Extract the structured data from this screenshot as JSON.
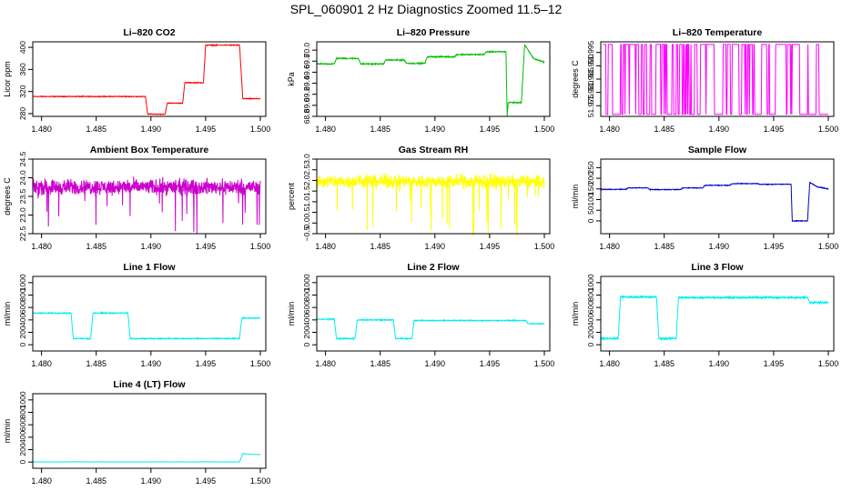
{
  "title": "SPL_060901  2 Hz Diagnostics Zoomed 11.5–12",
  "chart_data": [
    {
      "type": "line",
      "title": "Li–820 CO2",
      "ylabel": "Licor ppm",
      "color": "#ff0000",
      "xlim": [
        1.4792,
        1.5005
      ],
      "xticks": [
        "1.480",
        "1.485",
        "1.490",
        "1.495",
        "1.500"
      ],
      "xtick_values": [
        1.48,
        1.485,
        1.49,
        1.495,
        1.5
      ],
      "ylim": [
        275,
        410
      ],
      "yticks": [
        "280",
        "320",
        "360",
        "400"
      ],
      "ytick_values": [
        280,
        320,
        360,
        400
      ],
      "noise": 1.0,
      "segments": [
        [
          1.4792,
          311
        ],
        [
          1.4895,
          311
        ],
        [
          1.4897,
          279
        ],
        [
          1.4913,
          279
        ],
        [
          1.4915,
          299
        ],
        [
          1.4929,
          299
        ],
        [
          1.4931,
          336
        ],
        [
          1.4948,
          336
        ],
        [
          1.495,
          404
        ],
        [
          1.4981,
          404
        ],
        [
          1.4984,
          307
        ],
        [
          1.5,
          307
        ]
      ]
    },
    {
      "type": "line",
      "title": "Li–820 Pressure",
      "ylabel": "kPa",
      "color": "#00bb00",
      "xlim": [
        1.4792,
        1.5005
      ],
      "xticks": [
        "1.480",
        "1.485",
        "1.490",
        "1.495",
        "1.500"
      ],
      "xtick_values": [
        1.48,
        1.485,
        1.49,
        1.495,
        1.5
      ],
      "ylim": [
        68.8,
        70.15
      ],
      "yticks": [
        "68.8",
        "69.0",
        "69.2",
        "69.4",
        "69.6",
        "69.8",
        "70.0"
      ],
      "ytick_values": [
        68.8,
        69.0,
        69.2,
        69.4,
        69.6,
        69.8,
        70.0
      ],
      "noise": 0.015,
      "segments": [
        [
          1.4792,
          69.75
        ],
        [
          1.4808,
          69.75
        ],
        [
          1.481,
          69.85
        ],
        [
          1.483,
          69.85
        ],
        [
          1.4832,
          69.75
        ],
        [
          1.4853,
          69.75
        ],
        [
          1.4855,
          69.82
        ],
        [
          1.4872,
          69.82
        ],
        [
          1.4874,
          69.76
        ],
        [
          1.4891,
          69.76
        ],
        [
          1.4893,
          69.88
        ],
        [
          1.4918,
          69.88
        ],
        [
          1.492,
          69.92
        ],
        [
          1.4945,
          69.92
        ],
        [
          1.4947,
          69.97
        ],
        [
          1.4965,
          69.97
        ],
        [
          1.4966,
          68.8
        ],
        [
          1.4967,
          69.05
        ],
        [
          1.4979,
          69.05
        ],
        [
          1.4982,
          70.1
        ],
        [
          1.499,
          69.85
        ],
        [
          1.5,
          69.78
        ]
      ]
    },
    {
      "type": "line",
      "title": "Li–820 Temperature",
      "ylabel": "degrees C",
      "color": "#ff00ff",
      "xlim": [
        1.4792,
        1.5005
      ],
      "xticks": [
        "1.480",
        "1.485",
        "1.490",
        "1.495",
        "1.500"
      ],
      "xtick_values": [
        1.48,
        1.485,
        1.49,
        1.495,
        1.5
      ],
      "ylim": [
        51.971,
        51.999
      ],
      "yticks": [
        "51.975",
        "51.980",
        "51.985",
        "51.990",
        "51.995"
      ],
      "ytick_values": [
        51.975,
        51.98,
        51.985,
        51.99,
        51.995
      ],
      "binary": [
        51.9718,
        51.998
      ]
    },
    {
      "type": "line",
      "title": "Ambient Box Temperature",
      "ylabel": "degrees C",
      "color": "#cc00cc",
      "xlim": [
        1.4792,
        1.5005
      ],
      "xticks": [
        "1.480",
        "1.485",
        "1.490",
        "1.495",
        "1.500"
      ],
      "xtick_values": [
        1.48,
        1.485,
        1.49,
        1.495,
        1.5
      ],
      "ylim": [
        22.5,
        24.5
      ],
      "yticks": [
        "22.5",
        "23.0",
        "23.5",
        "24.0",
        "24.5"
      ],
      "ytick_values": [
        22.5,
        23.0,
        23.5,
        24.0,
        24.5
      ],
      "noise": 0.3,
      "spikes": 0.4,
      "segments": [
        [
          1.4792,
          23.75
        ],
        [
          1.5,
          23.75
        ]
      ]
    },
    {
      "type": "line",
      "title": "Gas Stream RH",
      "ylabel": "percent",
      "color": "#ffff00",
      "xlim": [
        1.4792,
        1.5005
      ],
      "xticks": [
        "1.480",
        "1.485",
        "1.490",
        "1.495",
        "1.500"
      ],
      "xtick_values": [
        1.48,
        1.485,
        1.49,
        1.495,
        1.5
      ],
      "ylim": [
        -0.5,
        3.0
      ],
      "yticks": [
        "−0.5",
        "0.0",
        "0.5",
        "1.0",
        "1.5",
        "2.0",
        "2.5",
        "3.0"
      ],
      "ytick_values": [
        -0.5,
        0.0,
        0.5,
        1.0,
        1.5,
        2.0,
        2.5,
        3.0
      ],
      "noise": 0.45,
      "spikes": 0.9,
      "segments": [
        [
          1.4792,
          1.95
        ],
        [
          1.5,
          1.95
        ]
      ]
    },
    {
      "type": "line",
      "title": "Sample Flow",
      "ylabel": "ml/min",
      "color": "#0000cc",
      "xlim": [
        1.4792,
        1.5005
      ],
      "xticks": [
        "1.480",
        "1.485",
        "1.490",
        "1.495",
        "1.500"
      ],
      "xtick_values": [
        1.48,
        1.485,
        1.49,
        1.495,
        1.5
      ],
      "ylim": [
        -60,
        290
      ],
      "yticks": [
        "0",
        "50",
        "100",
        "150",
        "200",
        "250"
      ],
      "ytick_values": [
        0,
        50,
        100,
        150,
        200,
        250
      ],
      "noise": 2.5,
      "segments": [
        [
          1.4792,
          148
        ],
        [
          1.4815,
          148
        ],
        [
          1.4817,
          155
        ],
        [
          1.4835,
          155
        ],
        [
          1.4837,
          147
        ],
        [
          1.4865,
          147
        ],
        [
          1.4867,
          155
        ],
        [
          1.4885,
          155
        ],
        [
          1.4887,
          167
        ],
        [
          1.491,
          167
        ],
        [
          1.4912,
          175
        ],
        [
          1.4935,
          175
        ],
        [
          1.4937,
          172
        ],
        [
          1.4966,
          172
        ],
        [
          1.4967,
          0
        ],
        [
          1.4981,
          0
        ],
        [
          1.4983,
          180
        ],
        [
          1.499,
          160
        ],
        [
          1.5,
          150
        ]
      ]
    },
    {
      "type": "line",
      "title": "Line 1 Flow",
      "ylabel": "ml/min",
      "color": "#00eeee",
      "xlim": [
        1.4792,
        1.5005
      ],
      "xticks": [
        "1.480",
        "1.485",
        "1.490",
        "1.495",
        "1.500"
      ],
      "xtick_values": [
        1.48,
        1.485,
        1.49,
        1.495,
        1.5
      ],
      "ylim": [
        -100,
        1100
      ],
      "yticks": [
        "0",
        "200",
        "400",
        "600",
        "800",
        "1000"
      ],
      "ytick_values": [
        0,
        200,
        400,
        600,
        800,
        1000
      ],
      "noise": 12,
      "segments": [
        [
          1.4792,
          510
        ],
        [
          1.4827,
          510
        ],
        [
          1.4829,
          100
        ],
        [
          1.4845,
          100
        ],
        [
          1.4847,
          510
        ],
        [
          1.4879,
          510
        ],
        [
          1.4881,
          100
        ],
        [
          1.4981,
          100
        ],
        [
          1.4983,
          430
        ],
        [
          1.5,
          430
        ]
      ]
    },
    {
      "type": "line",
      "title": "Line 2 Flow",
      "ylabel": "ml/min",
      "color": "#00eeee",
      "xlim": [
        1.4792,
        1.5005
      ],
      "xticks": [
        "1.480",
        "1.485",
        "1.490",
        "1.495",
        "1.500"
      ],
      "xtick_values": [
        1.48,
        1.485,
        1.49,
        1.495,
        1.5
      ],
      "ylim": [
        -100,
        1100
      ],
      "yticks": [
        "0",
        "200",
        "400",
        "600",
        "800",
        "1000"
      ],
      "ytick_values": [
        0,
        200,
        400,
        600,
        800,
        1000
      ],
      "noise": 12,
      "segments": [
        [
          1.4792,
          410
        ],
        [
          1.4808,
          410
        ],
        [
          1.481,
          100
        ],
        [
          1.4827,
          100
        ],
        [
          1.4829,
          400
        ],
        [
          1.4862,
          400
        ],
        [
          1.4864,
          100
        ],
        [
          1.4879,
          100
        ],
        [
          1.4881,
          390
        ],
        [
          1.4983,
          390
        ],
        [
          1.4985,
          340
        ],
        [
          1.5,
          340
        ]
      ]
    },
    {
      "type": "line",
      "title": "Line 3 Flow",
      "ylabel": "ml/min",
      "color": "#00eeee",
      "xlim": [
        1.4792,
        1.5005
      ],
      "xticks": [
        "1.480",
        "1.485",
        "1.490",
        "1.495",
        "1.500"
      ],
      "xtick_values": [
        1.48,
        1.485,
        1.49,
        1.495,
        1.5
      ],
      "ylim": [
        -100,
        1100
      ],
      "yticks": [
        "0",
        "200",
        "400",
        "600",
        "800",
        "1000"
      ],
      "ytick_values": [
        0,
        200,
        400,
        600,
        800,
        1000
      ],
      "noise": 22,
      "segments": [
        [
          1.4792,
          100
        ],
        [
          1.4808,
          100
        ],
        [
          1.481,
          770
        ],
        [
          1.4843,
          770
        ],
        [
          1.4845,
          100
        ],
        [
          1.4861,
          100
        ],
        [
          1.4863,
          760
        ],
        [
          1.4981,
          760
        ],
        [
          1.4983,
          680
        ],
        [
          1.5,
          680
        ]
      ]
    },
    {
      "type": "line",
      "title": "Line 4 (LT) Flow",
      "ylabel": "ml/min",
      "color": "#00eeee",
      "xlim": [
        1.4792,
        1.5005
      ],
      "xticks": [
        "1.480",
        "1.485",
        "1.490",
        "1.495",
        "1.500"
      ],
      "xtick_values": [
        1.48,
        1.485,
        1.49,
        1.495,
        1.5
      ],
      "ylim": [
        -100,
        1100
      ],
      "yticks": [
        "0",
        "200",
        "400",
        "600",
        "800",
        "1000"
      ],
      "ytick_values": [
        0,
        200,
        400,
        600,
        800,
        1000
      ],
      "noise": 2,
      "segments": [
        [
          1.4792,
          3
        ],
        [
          1.4981,
          3
        ],
        [
          1.4984,
          140
        ],
        [
          1.499,
          125
        ],
        [
          1.5,
          120
        ]
      ]
    }
  ]
}
